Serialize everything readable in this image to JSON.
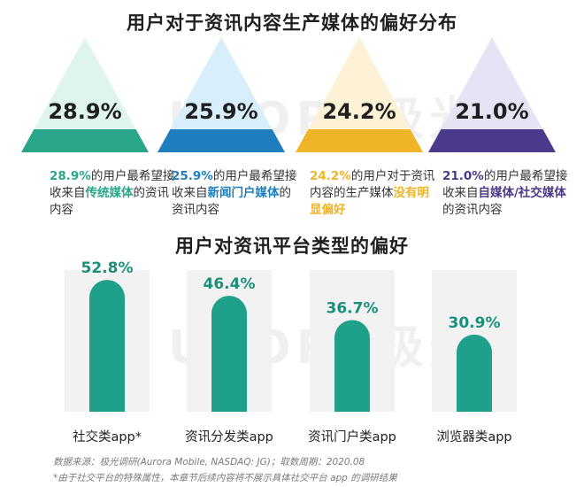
{
  "page": {
    "title_top": "用户对于资讯内容生产媒体的偏好分布",
    "title_bottom": "用户对资讯平台类型的偏好",
    "watermark": "URORA极光"
  },
  "triangles": [
    {
      "pct": "28.9%",
      "color": "#2aa68a",
      "light": "#dff5ee",
      "desc_pre": "的用户最希望接收来自",
      "desc_hl": "传统媒体",
      "desc_post": "的资讯内容"
    },
    {
      "pct": "25.9%",
      "color": "#1f7fbe",
      "light": "#d9eefb",
      "desc_pre": "的用户最希望接收来自",
      "desc_hl": "新闻门户媒体",
      "desc_post": "的资讯内容"
    },
    {
      "pct": "24.2%",
      "color": "#f0b429",
      "light": "#fdf1d6",
      "desc_pre": "的用户对于资讯内容的生产媒体",
      "desc_hl": "没有明显偏好",
      "desc_post": ""
    },
    {
      "pct": "21.0%",
      "color": "#4b3a8c",
      "light": "#e7e3f4",
      "desc_pre": "的用户最希望接收来自",
      "desc_hl": "自媒体/社交媒体",
      "desc_post": "的资讯内容"
    }
  ],
  "chart_data": {
    "type": "bar",
    "categories": [
      "社交类app*",
      "资讯分发类app",
      "资讯门户类app",
      "浏览器类app"
    ],
    "values": [
      52.8,
      46.4,
      36.7,
      30.9
    ],
    "value_labels": [
      "52.8%",
      "46.4%",
      "36.7%",
      "30.9%"
    ],
    "ylim": [
      0,
      60
    ],
    "bar_color": "#1fa08a",
    "grid": false
  },
  "footnotes": {
    "source": "数据来源：极光调研(Aurora Mobile, NASDAQ: JG)；取数周期：2020.08",
    "note": "*由于社交平台的特殊属性，本章节后续内容将不展示具体社交平台 app 的调研结果"
  }
}
